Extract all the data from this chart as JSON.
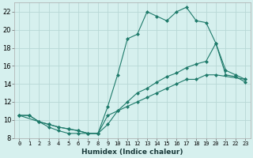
{
  "xlabel": "Humidex (Indice chaleur)",
  "bg_color": "#d6f0ee",
  "grid_color": "#b8d8d5",
  "line_color": "#1e7a6a",
  "xlim": [
    -0.5,
    23.5
  ],
  "ylim": [
    8,
    23
  ],
  "xticks": [
    0,
    1,
    2,
    3,
    4,
    5,
    6,
    7,
    8,
    9,
    10,
    11,
    12,
    13,
    14,
    15,
    16,
    17,
    18,
    19,
    20,
    21,
    22,
    23
  ],
  "yticks": [
    8,
    10,
    12,
    14,
    16,
    18,
    20,
    22
  ],
  "line1_x": [
    0,
    1,
    2,
    3,
    4,
    5,
    6,
    7,
    8,
    9,
    10,
    11,
    12,
    13,
    14,
    15,
    16,
    17,
    18,
    19,
    20,
    21,
    22,
    23
  ],
  "line1_y": [
    10.5,
    10.5,
    9.8,
    9.2,
    8.8,
    8.5,
    8.5,
    8.5,
    8.5,
    11.5,
    15.0,
    19.0,
    19.5,
    22.0,
    21.5,
    21.0,
    22.0,
    22.5,
    21.0,
    20.8,
    18.5,
    15.0,
    14.8,
    14.2
  ],
  "line2_x": [
    0,
    1,
    2,
    3,
    4,
    5,
    6,
    7,
    8,
    9,
    10,
    11,
    12,
    13,
    14,
    15,
    16,
    17,
    18,
    19,
    20,
    21,
    22,
    23
  ],
  "line2_y": [
    10.5,
    10.5,
    9.8,
    9.5,
    9.2,
    9.0,
    8.8,
    8.5,
    8.5,
    9.5,
    11.0,
    12.0,
    13.0,
    13.5,
    14.2,
    14.8,
    15.2,
    15.8,
    16.2,
    16.5,
    18.5,
    15.5,
    15.0,
    14.5
  ],
  "line3_x": [
    0,
    2,
    3,
    4,
    5,
    6,
    7,
    8,
    9,
    10,
    11,
    12,
    13,
    14,
    15,
    16,
    17,
    18,
    19,
    20,
    23
  ],
  "line3_y": [
    10.5,
    9.8,
    9.5,
    9.2,
    9.0,
    8.8,
    8.5,
    8.5,
    10.5,
    11.0,
    11.5,
    12.0,
    12.5,
    13.0,
    13.5,
    14.0,
    14.5,
    14.5,
    15.0,
    15.0,
    14.5
  ]
}
